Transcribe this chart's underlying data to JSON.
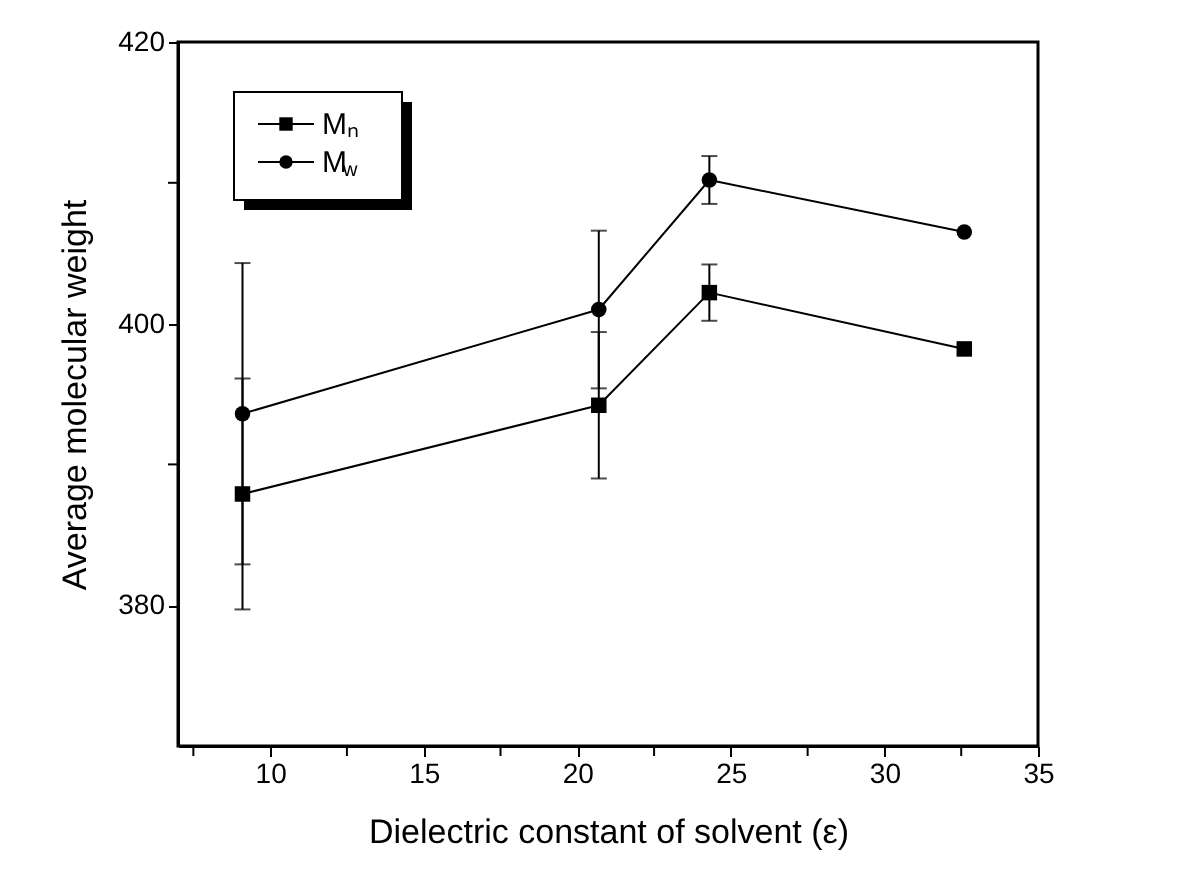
{
  "chart_data": {
    "type": "line",
    "xlabel": "Dielectric constant of solvent (ε)",
    "ylabel": "Average molecular weight",
    "x": [
      9.1,
      20.7,
      24.3,
      32.6
    ],
    "series": [
      {
        "name": "Mₙ",
        "color": "#000000",
        "marker": "square",
        "values": [
          387.9,
          394.2,
          402.2,
          398.2
        ],
        "errors": [
          8.2,
          5.2,
          2.0,
          null
        ]
      },
      {
        "name": "M$_{w}$",
        "color": "#000000",
        "marker": "circle",
        "values": [
          393.6,
          401.0,
          410.2,
          406.5
        ],
        "errors": [
          10.7,
          5.6,
          1.7,
          null
        ]
      }
    ],
    "xlim": [
      7,
      35
    ],
    "xticks": [
      {
        "value": 7.5,
        "label": null
      },
      10,
      {
        "value": 12.5,
        "label": null
      },
      15,
      {
        "value": 17.5,
        "label": null
      },
      20,
      {
        "value": 22.5,
        "label": null
      },
      25,
      {
        "value": 27.5,
        "label": null
      },
      30,
      {
        "value": 32.5,
        "label": null
      },
      35
    ],
    "ylim": [
      370,
      420
    ],
    "yticks": [
      380,
      {
        "value": 390,
        "label": null
      },
      400,
      {
        "value": 410,
        "label": null
      },
      420
    ],
    "grid": false,
    "legend": "top left",
    "line_style": "solid"
  }
}
